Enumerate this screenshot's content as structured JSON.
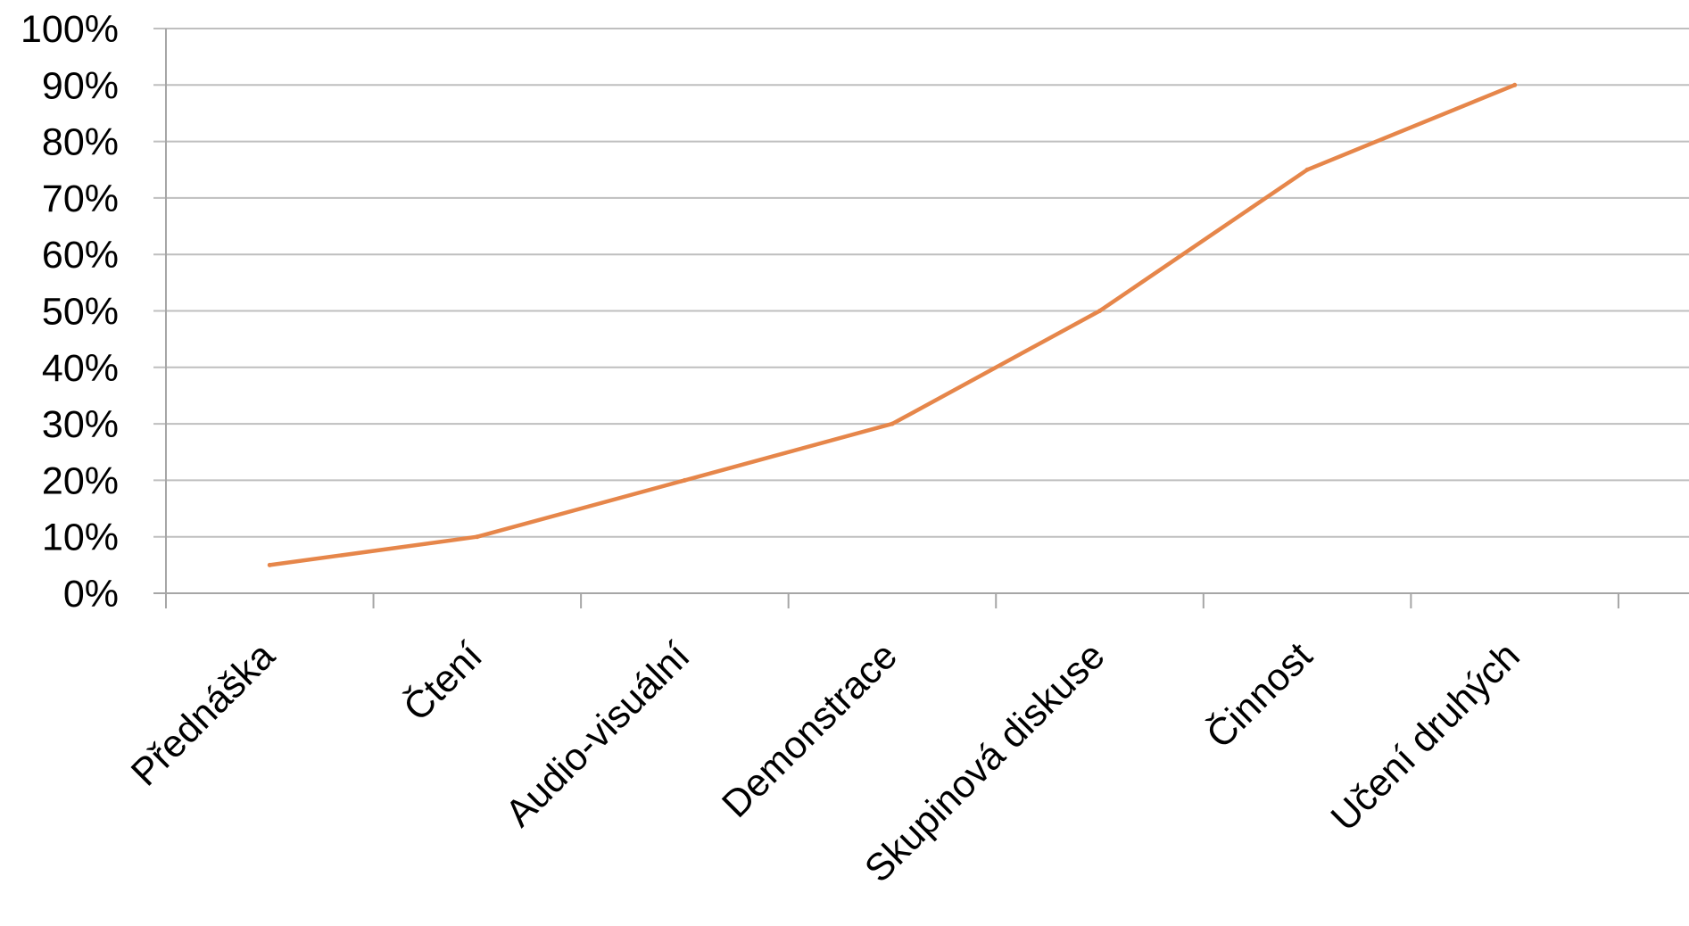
{
  "chart_data": {
    "type": "line",
    "categories": [
      "Přednáška",
      "Čtení",
      "Audio-visuální",
      "Demonstrace",
      "Skupinová diskuse",
      "Činnost",
      "Učení druhých"
    ],
    "series": [
      {
        "values": [
          5,
          10,
          20,
          30,
          50,
          75,
          90
        ]
      }
    ],
    "ylim": [
      0,
      100
    ],
    "ytick_values": [
      0,
      10,
      20,
      30,
      40,
      50,
      60,
      70,
      80,
      90,
      100
    ],
    "ytick_labels": [
      "0%",
      "10%",
      "20%",
      "30%",
      "40%",
      "50%",
      "60%",
      "70%",
      "80%",
      "90%",
      "100%"
    ],
    "title": "",
    "xlabel": "",
    "ylabel": "",
    "grid": true,
    "legend": "none",
    "colors": {
      "line": "#E6864A",
      "grid": "#BFBFBF",
      "axis": "#A6A6A6",
      "text": "#000000"
    }
  }
}
